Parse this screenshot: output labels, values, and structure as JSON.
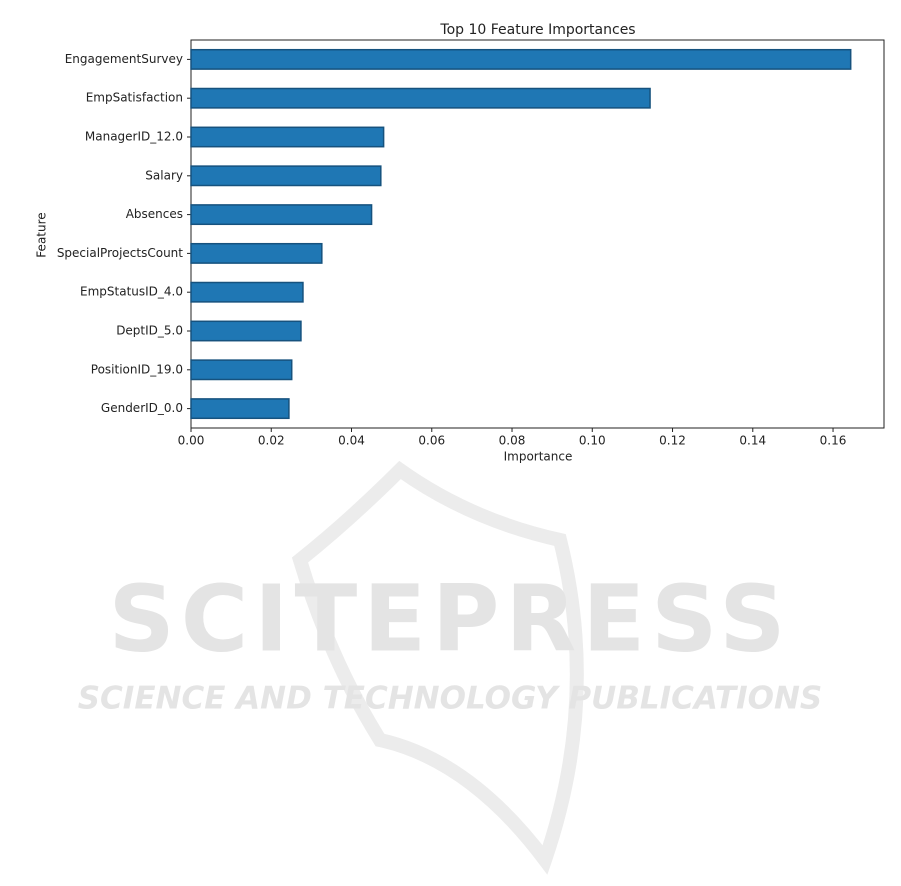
{
  "chart_data": {
    "type": "barh",
    "title": "Top 10 Feature Importances",
    "x_label": "Importance",
    "y_label": "Feature",
    "categories": [
      "EngagementSurvey",
      "EmpSatisfaction",
      "ManagerID_12.0",
      "Salary",
      "Absences",
      "SpecialProjectsCount",
      "EmpStatusID_4.0",
      "DeptID_5.0",
      "PositionID_19.0",
      "GenderID_0.0"
    ],
    "values": [
      0.1644,
      0.1144,
      0.048,
      0.0473,
      0.045,
      0.0326,
      0.0279,
      0.0274,
      0.0251,
      0.0244
    ],
    "color": "#1f77b4",
    "xlim": [
      0,
      0.1727
    ],
    "xticks": [
      {
        "value": 0,
        "label": "0.00"
      },
      {
        "value": 0.02,
        "label": "0.02"
      },
      {
        "value": 0.04,
        "label": "0.04"
      },
      {
        "value": 0.06,
        "label": "0.06"
      },
      {
        "value": 0.08,
        "label": "0.08"
      },
      {
        "value": 0.1,
        "label": "0.10"
      },
      {
        "value": 0.12,
        "label": "0.12"
      },
      {
        "value": 0.14,
        "label": "0.14"
      },
      {
        "value": 0.16,
        "label": "0.16"
      }
    ]
  },
  "watermark": {
    "title": "SCITEPRESS",
    "subtitle": "SCIENCE AND TECHNOLOGY PUBLICATIONS"
  }
}
